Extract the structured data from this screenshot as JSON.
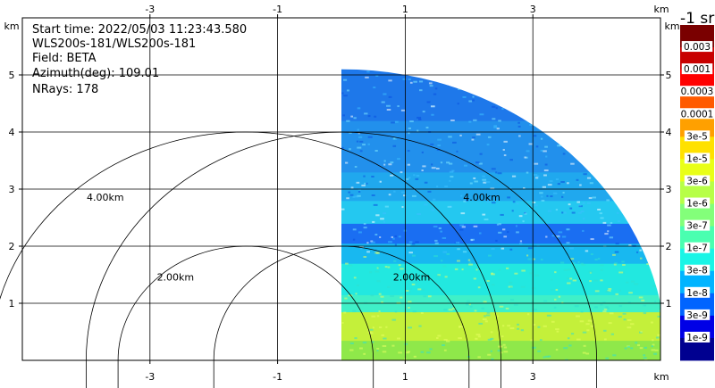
{
  "info": {
    "start_time": "Start time: 2022/05/03 11:23:43.580",
    "instrument": "WLS200s-181/WLS200s-181",
    "field": "Field: BETA",
    "azimuth": "Azimuth(deg): 109.01",
    "nrays": "NRays: 178"
  },
  "axes": {
    "x_unit": "km",
    "y_unit": "km",
    "x_ticks": [
      "-3",
      "-1",
      "1",
      "3"
    ],
    "y_ticks": [
      "1",
      "2",
      "3",
      "4",
      "5"
    ]
  },
  "colorbar": {
    "title": "-1 sr",
    "labels": [
      "0.003",
      "0.001",
      "0.0003",
      "0.0001",
      "3e-5",
      "1e-5",
      "3e-6",
      "1e-6",
      "3e-7",
      "1e-7",
      "3e-8",
      "1e-8",
      "3e-9",
      "1e-9"
    ]
  },
  "colors": {
    "background": "#ffffff",
    "grid": "#000000"
  },
  "chart_data": {
    "type": "heatmap",
    "title": "",
    "xlabel": "km",
    "ylabel": "km",
    "xlim": [
      -5.0,
      5.0
    ],
    "ylim": [
      0.0,
      6.0
    ],
    "x_ticks": [
      -3,
      -1,
      1,
      3
    ],
    "y_ticks": [
      1,
      2,
      3,
      4,
      5
    ],
    "grid": true,
    "range_rings": [
      {
        "radius_km": 2.0,
        "label": "2.00km"
      },
      {
        "radius_km": 4.0,
        "label": "4.00km"
      }
    ],
    "field": "BETA",
    "azimuth_deg": 109.01,
    "nrays": 178,
    "sector": {
      "x_start_km": 0.0,
      "max_range_km": 5.1
    },
    "bands": [
      {
        "y_from": 0.0,
        "y_to": 0.35,
        "color": "#8fe84a"
      },
      {
        "y_from": 0.35,
        "y_to": 0.85,
        "color": "#c4f03a"
      },
      {
        "y_from": 0.85,
        "y_to": 1.15,
        "color": "#3ff0c8"
      },
      {
        "y_from": 1.15,
        "y_to": 1.7,
        "color": "#22e8e0"
      },
      {
        "y_from": 1.7,
        "y_to": 2.05,
        "color": "#18b8f0"
      },
      {
        "y_from": 2.05,
        "y_to": 2.4,
        "color": "#1a6ef2"
      },
      {
        "y_from": 2.4,
        "y_to": 2.8,
        "color": "#24c8f0"
      },
      {
        "y_from": 2.8,
        "y_to": 3.3,
        "color": "#20a8ee"
      },
      {
        "y_from": 3.3,
        "y_to": 4.2,
        "color": "#2290ec"
      },
      {
        "y_from": 4.2,
        "y_to": 5.1,
        "color": "#1e78ea"
      }
    ],
    "colorbar_colors": [
      "#7a0000",
      "#c80000",
      "#ff0000",
      "#ff5a00",
      "#ffa000",
      "#ffe100",
      "#e9ff17",
      "#b7ff47",
      "#83ff7a",
      "#4affb0",
      "#19f5e6",
      "#00b4ff",
      "#0064ff",
      "#0000e6",
      "#000090"
    ],
    "colorbar_labels": [
      "0.003",
      "0.001",
      "0.0003",
      "0.0001",
      "3e-5",
      "1e-5",
      "3e-6",
      "1e-6",
      "3e-7",
      "1e-7",
      "3e-8",
      "1e-8",
      "3e-9",
      "1e-9"
    ],
    "colorbar_title": "-1 sr"
  }
}
